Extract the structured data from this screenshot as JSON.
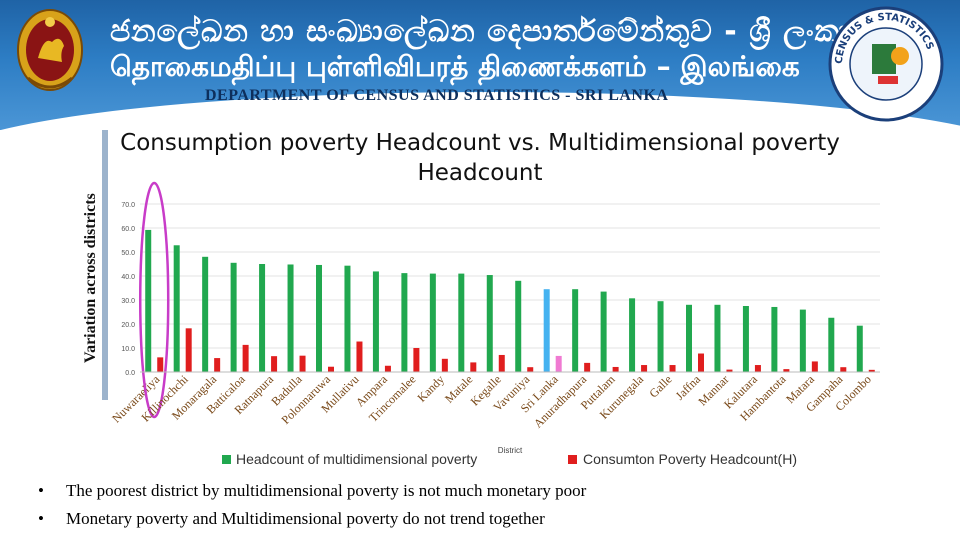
{
  "header": {
    "sinhala": "ජනලේඛන හා සංඛ්‍යාලේඛන දෙපාර්තමේන්තුව - ශ්‍රී ලංකාව",
    "tamil": "தொகைமதிப்பு புள்ளிவிபரத் திணைக்களம் – இலங்கை",
    "english": "DEPARTMENT OF CENSUS AND STATISTICS - SRI LANKA",
    "logo_right_text": "CENSUS & STATISTICS"
  },
  "side_title": "Variation across districts",
  "bullets": [
    "The poorest district by multidimensional poverty is not much monetary poor",
    "Monetary poverty and Multidimensional poverty do not trend together"
  ],
  "colors": {
    "mpi": "#21a84f",
    "mpi_highlight": "#45b2f0",
    "monetary": "#e01e1e",
    "monetary_highlight": "#f07ad2",
    "circle": "#c83cc8"
  },
  "chart_data": {
    "type": "bar",
    "title": "Consumption poverty Headcount  vs. Multidimensional poverty Headcount",
    "xlabel": "District",
    "ylim": [
      0,
      70
    ],
    "yticks": [
      "0.0",
      "10.0",
      "20.0",
      "30.0",
      "40.0",
      "50.0",
      "60.0",
      "70.0"
    ],
    "categories": [
      "Nuwaraeliya",
      "Killinochchi",
      "Monaragala",
      "Batticaloa",
      "Ratnapura",
      "Badulla",
      "Polonnaruwa",
      "Mullativu",
      "Ampara",
      "Trincomalee",
      "Kandy",
      "Matale",
      "Kegalle",
      "Vavuniya",
      "Sri Lanka",
      "Anuradhapura",
      "Puttalam",
      "Kurunegala",
      "Galle",
      "Jaffna",
      "Mannar",
      "Kalutara",
      "Hambantota",
      "Matara",
      "Gampaha",
      "Colombo"
    ],
    "highlight_category": "Sri Lanka",
    "circled_category": "Nuwaraeliya",
    "series": [
      {
        "name": "Headcount of multidimensional poverty",
        "values": [
          59.2,
          52.8,
          48.0,
          45.5,
          45.0,
          44.8,
          44.6,
          44.3,
          41.9,
          41.2,
          41.0,
          41.0,
          40.4,
          38.0,
          34.5,
          34.5,
          33.5,
          30.7,
          29.5,
          28.0,
          28.0,
          27.5,
          27.1,
          26.0,
          22.6,
          19.3
        ]
      },
      {
        "name": "Consumton Poverty Headcount(H)",
        "values": [
          6.1,
          18.2,
          5.8,
          11.3,
          6.6,
          6.8,
          2.2,
          12.7,
          2.6,
          10.0,
          5.5,
          4.0,
          7.1,
          2.0,
          6.7,
          3.8,
          2.1,
          2.9,
          2.9,
          7.7,
          1.0,
          2.9,
          1.2,
          4.4,
          2.0,
          0.9
        ]
      }
    ],
    "legend_position": "bottom",
    "grid": true
  }
}
